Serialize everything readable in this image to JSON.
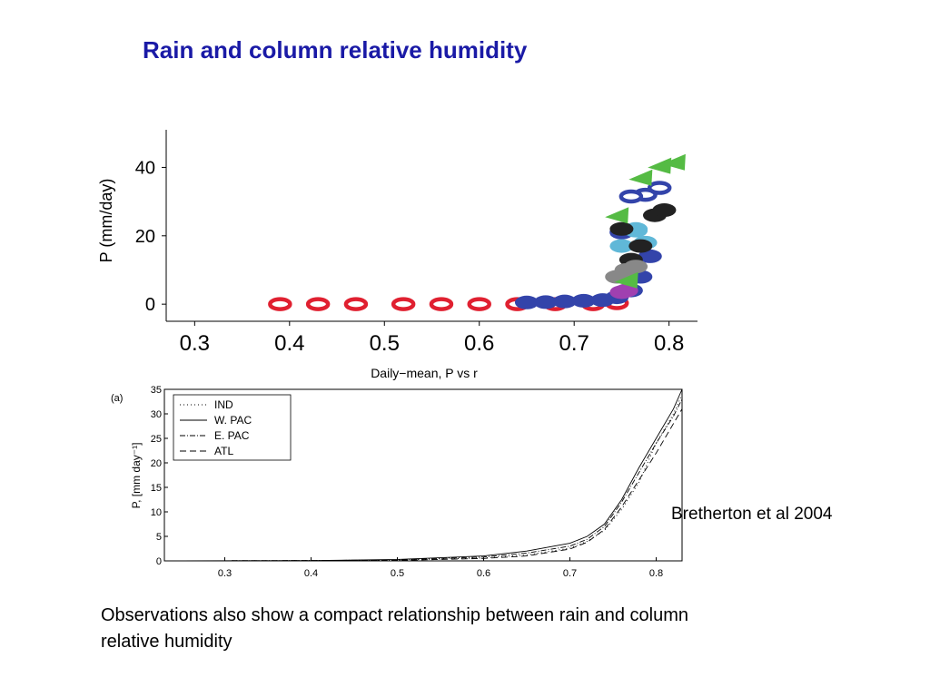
{
  "slide": {
    "title": "Rain and column relative humidity",
    "citation": "Bretherton et al 2004",
    "caption": "Observations also show a compact relationship between rain and column relative humidity"
  },
  "chart_data": [
    {
      "type": "scatter",
      "ylabel": "P (mm/day)",
      "xlabel": "Daily−mean, P vs r",
      "xlim": [
        0.27,
        0.83
      ],
      "ylim": [
        -5,
        51
      ],
      "xticks": [
        "0.3",
        "0.4",
        "0.5",
        "0.6",
        "0.7",
        "0.8"
      ],
      "yticks": [
        "0",
        "20",
        "40"
      ],
      "series": [
        {
          "color": "#e02030",
          "marker": "ring",
          "points": [
            [
              0.39,
              0
            ],
            [
              0.43,
              0
            ],
            [
              0.47,
              0
            ],
            [
              0.52,
              0
            ],
            [
              0.56,
              0
            ],
            [
              0.6,
              0
            ],
            [
              0.64,
              0
            ],
            [
              0.68,
              0
            ],
            [
              0.72,
              0
            ],
            [
              0.745,
              0.3
            ]
          ]
        },
        {
          "color": "#3344aa",
          "marker": "blob",
          "points": [
            [
              0.65,
              0.5
            ],
            [
              0.67,
              0.6
            ],
            [
              0.69,
              0.8
            ],
            [
              0.71,
              1.0
            ],
            [
              0.73,
              1.2
            ],
            [
              0.745,
              2
            ],
            [
              0.76,
              4
            ],
            [
              0.77,
              8
            ],
            [
              0.78,
              14
            ]
          ]
        },
        {
          "color": "#3344aa",
          "marker": "ring",
          "points": [
            [
              0.75,
              21
            ],
            [
              0.775,
              32
            ],
            [
              0.76,
              31.5
            ],
            [
              0.79,
              34
            ]
          ]
        },
        {
          "color": "#60b8d8",
          "marker": "blob",
          "points": [
            [
              0.75,
              17
            ],
            [
              0.765,
              21.5
            ],
            [
              0.775,
              18
            ],
            [
              0.765,
              22
            ]
          ]
        },
        {
          "color": "#222222",
          "marker": "blob",
          "points": [
            [
              0.76,
              13
            ],
            [
              0.77,
              17
            ],
            [
              0.785,
              26
            ],
            [
              0.795,
              27.5
            ],
            [
              0.75,
              22
            ]
          ]
        },
        {
          "color": "#888888",
          "marker": "blob",
          "points": [
            [
              0.755,
              10
            ],
            [
              0.765,
              11
            ],
            [
              0.745,
              8
            ]
          ]
        },
        {
          "color": "#a040b0",
          "marker": "blob",
          "points": [
            [
              0.75,
              3.5
            ],
            [
              0.755,
              4
            ]
          ]
        },
        {
          "color": "#55bb44",
          "marker": "tri",
          "points": [
            [
              0.745,
              26
            ],
            [
              0.77,
              37
            ],
            [
              0.79,
              40.5
            ],
            [
              0.805,
              41.5
            ],
            [
              0.755,
              7
            ]
          ]
        }
      ]
    },
    {
      "type": "line",
      "panel_label": "(a)",
      "ylabel": "P, [mm day⁻¹]",
      "xlim": [
        0.23,
        0.83
      ],
      "ylim": [
        0,
        35
      ],
      "xticks": [
        "0.3",
        "0.4",
        "0.5",
        "0.6",
        "0.7",
        "0.8"
      ],
      "yticks": [
        "0",
        "5",
        "10",
        "15",
        "20",
        "25",
        "30",
        "35"
      ],
      "series": [
        {
          "name": "IND",
          "dash": "1,3",
          "x": [
            0.25,
            0.4,
            0.5,
            0.6,
            0.65,
            0.7,
            0.72,
            0.74,
            0.76,
            0.78,
            0.8,
            0.82,
            0.83
          ],
          "y": [
            0,
            0.05,
            0.15,
            0.6,
            1.2,
            2.6,
            4.0,
            6.2,
            10.5,
            16,
            24,
            30,
            34
          ]
        },
        {
          "name": "W. PAC",
          "dash": "",
          "x": [
            0.25,
            0.4,
            0.5,
            0.6,
            0.65,
            0.7,
            0.72,
            0.74,
            0.76,
            0.78,
            0.8,
            0.82,
            0.83
          ],
          "y": [
            0,
            0.05,
            0.3,
            1.0,
            2.0,
            3.6,
            5.0,
            7.5,
            12.5,
            19,
            25,
            31,
            35
          ]
        },
        {
          "name": "E. PAC",
          "dash": "6,2,1,2",
          "x": [
            0.25,
            0.4,
            0.5,
            0.6,
            0.65,
            0.7,
            0.72,
            0.74,
            0.76,
            0.78,
            0.8,
            0.82,
            0.83
          ],
          "y": [
            0,
            0.05,
            0.2,
            0.8,
            1.6,
            3.0,
            4.4,
            7.0,
            12,
            18,
            24,
            29.5,
            33
          ]
        },
        {
          "name": "ATL",
          "dash": "7,4",
          "x": [
            0.25,
            0.4,
            0.5,
            0.6,
            0.65,
            0.7,
            0.72,
            0.74,
            0.76,
            0.78,
            0.8,
            0.82,
            0.83
          ],
          "y": [
            0,
            0.05,
            0.1,
            0.5,
            1.0,
            2.4,
            3.8,
            6.4,
            11,
            16.5,
            22,
            28,
            31
          ]
        }
      ]
    }
  ]
}
